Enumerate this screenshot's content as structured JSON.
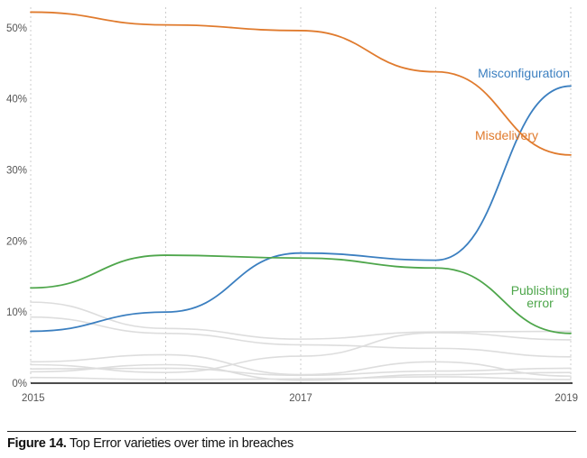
{
  "chart_data": {
    "type": "line",
    "x": [
      2015,
      2016,
      2017,
      2018,
      2019
    ],
    "x_tick_labels": [
      "2015",
      "2017",
      "2019"
    ],
    "y_tick_labels": [
      "0%",
      "10%",
      "20%",
      "30%",
      "40%",
      "50%"
    ],
    "ylim": [
      0,
      52
    ],
    "xlim": [
      2015,
      2019
    ],
    "grid": "vertical dashed",
    "series": [
      {
        "name": "Misconfiguration",
        "values": [
          7.3,
          10,
          18.3,
          17.3,
          41.8
        ],
        "color": "#3b7fc0"
      },
      {
        "name": "Misdelivery",
        "values": [
          52.2,
          50.4,
          49.6,
          43.8,
          32.1
        ],
        "color": "#e07b2e"
      },
      {
        "name": "Publishing error",
        "values": [
          13.4,
          18,
          17.6,
          16.2,
          7
        ],
        "color": "#4ea64b"
      },
      {
        "values": [
          11.4,
          7.7,
          6.2,
          7.2,
          7.3
        ],
        "color": "#dddddd"
      },
      {
        "values": [
          9.3,
          7,
          5.4,
          4.9,
          3.7
        ],
        "color": "#dddddd"
      },
      {
        "values": [
          3,
          4,
          1.2,
          3,
          1
        ],
        "color": "#dddddd"
      },
      {
        "values": [
          2.6,
          1.5,
          3.8,
          7.1,
          6.1
        ],
        "color": "#dddddd"
      },
      {
        "values": [
          2,
          2.1,
          1.1,
          1.7,
          2.1
        ],
        "color": "#dddddd"
      },
      {
        "values": [
          1.6,
          2.6,
          0.4,
          1.2,
          1.5
        ],
        "color": "#dddddd"
      },
      {
        "values": [
          0.8,
          0.5,
          0.6,
          0.9,
          0.5
        ],
        "color": "#dddddd"
      }
    ]
  },
  "labels": {
    "misconfiguration": "Misconfiguration",
    "misdelivery": "Misdelivery",
    "publishing_error_line1": "Publishing",
    "publishing_error_line2": "error"
  },
  "caption": {
    "figure": "Figure 14.",
    "text": " Top Error varieties over time in breaches"
  }
}
